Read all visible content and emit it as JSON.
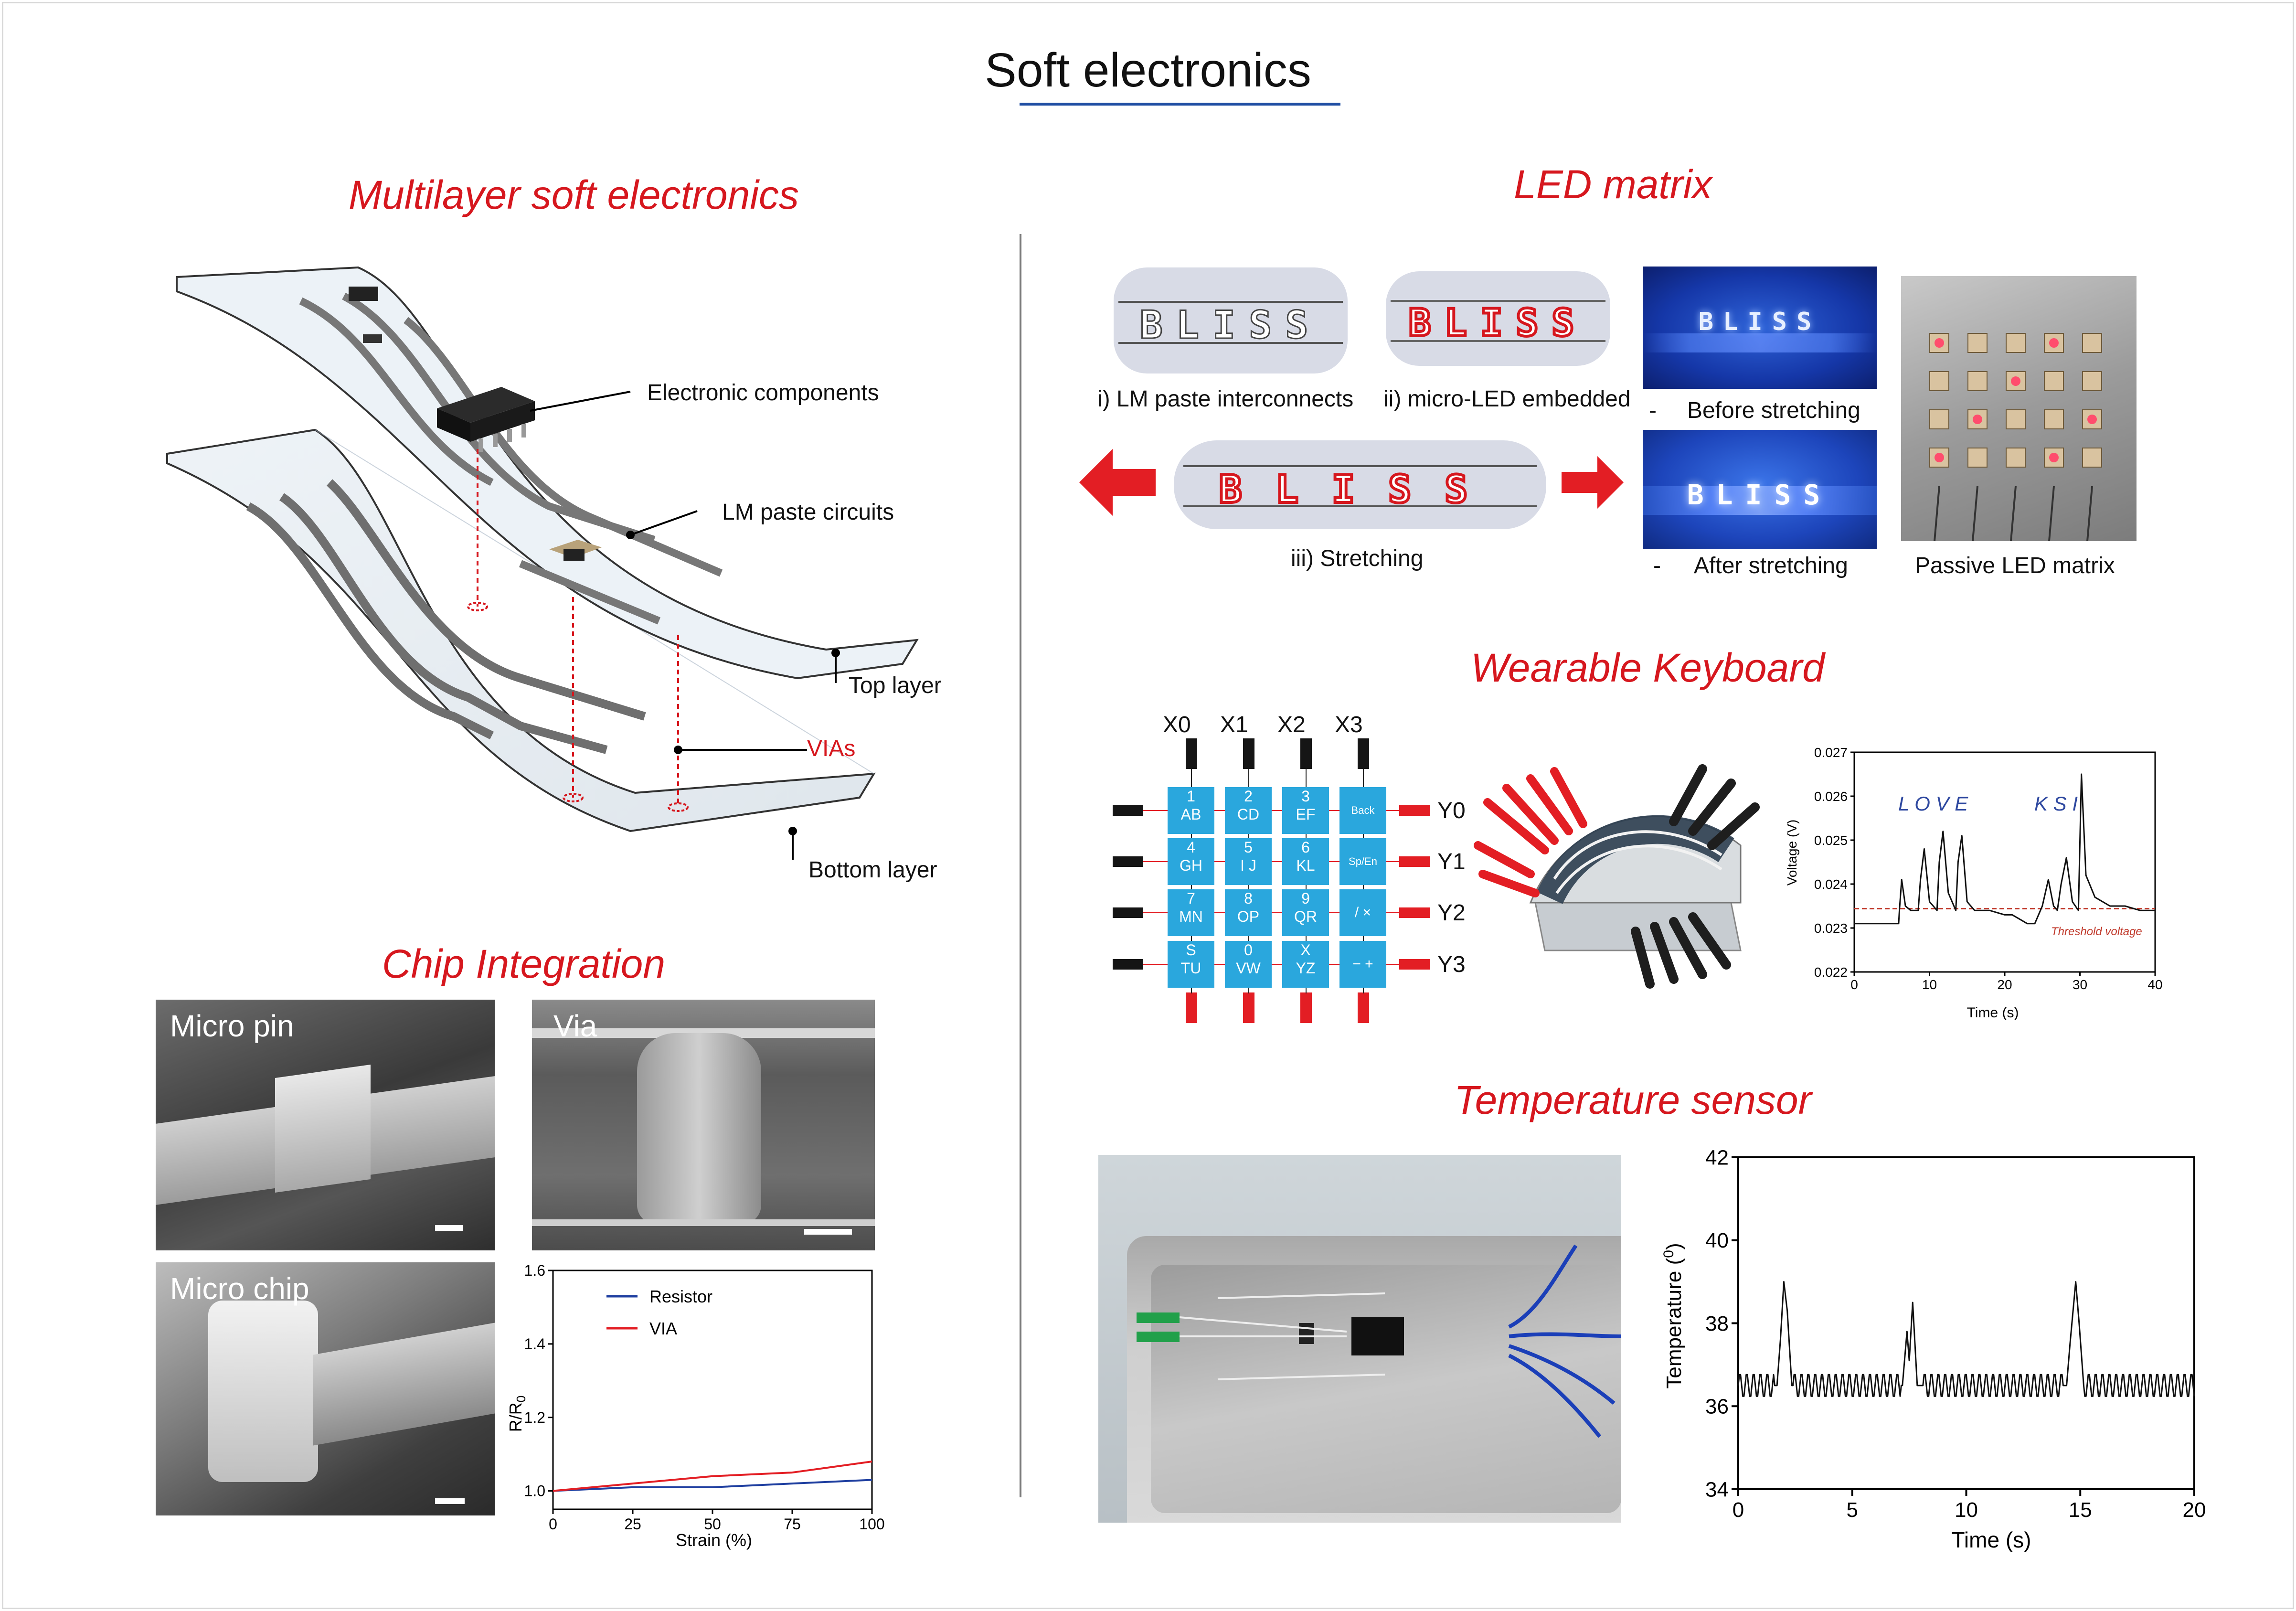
{
  "title": "Soft electronics",
  "multilayer": {
    "title": "Multilayer soft electronics",
    "labels": {
      "components": "Electronic components",
      "circuits": "LM paste circuits",
      "top": "Top layer",
      "vias": "VIAs",
      "bottom": "Bottom layer"
    }
  },
  "chip": {
    "title": "Chip Integration",
    "micro_pin": "Micro pin",
    "via": "Via",
    "micro_chip": "Micro chip",
    "chart": {
      "xlabel": "Strain (%)",
      "ylabel_main": "R/R",
      "ylabel_sub": "0",
      "xticks": [
        "0",
        "25",
        "50",
        "75",
        "100"
      ],
      "yticks": [
        "1.0",
        "1.2",
        "1.4",
        "1.6"
      ],
      "legend_resistor": "Resistor",
      "legend_via": "VIA"
    }
  },
  "led": {
    "title": "LED matrix",
    "bliss": "BLISS",
    "cap_i": "i) LM paste interconnects",
    "cap_ii": "ii) micro-LED embedded",
    "cap_iii": "iii) Stretching",
    "dash": "-",
    "before": "Before stretching",
    "after": "After stretching",
    "passive": "Passive LED matrix"
  },
  "keyboard": {
    "title": "Wearable Keyboard",
    "cols": [
      "X0",
      "X1",
      "X2",
      "X3"
    ],
    "rows": [
      "Y0",
      "Y1",
      "Y2",
      "Y3"
    ],
    "keys": [
      [
        "1",
        "AB"
      ],
      [
        "2",
        "CD"
      ],
      [
        "3",
        "EF"
      ],
      [
        "Back",
        ""
      ],
      [
        "4",
        "GH"
      ],
      [
        "5",
        "I J"
      ],
      [
        "6",
        "KL"
      ],
      [
        "Sp/En",
        ""
      ],
      [
        "7",
        "MN"
      ],
      [
        "8",
        "OP"
      ],
      [
        "9",
        "QR"
      ],
      [
        "/ ×",
        ""
      ],
      [
        "S",
        "TU"
      ],
      [
        "0",
        "VW"
      ],
      [
        "X",
        "YZ"
      ],
      [
        "− +",
        ""
      ]
    ],
    "chart": {
      "xlabel": "Time (s)",
      "ylabel": "Voltage (V)",
      "xticks": [
        "0",
        "10",
        "20",
        "30",
        "40"
      ],
      "yticks": [
        "0.022",
        "0.023",
        "0.024",
        "0.025",
        "0.026",
        "0.027"
      ],
      "ann1": "L O V E",
      "ann2": "K S I",
      "threshold_label": "Threshold voltage"
    }
  },
  "temp": {
    "title": "Temperature sensor",
    "chart": {
      "xlabel": "Time (s)",
      "ylabel_main": "Temperature (",
      "ylabel_sup": "0",
      "ylabel_end": ")",
      "xticks": [
        "0",
        "5",
        "10",
        "15",
        "20"
      ],
      "yticks": [
        "34",
        "36",
        "38",
        "40",
        "42"
      ]
    }
  },
  "chart_data": [
    {
      "type": "line",
      "xlabel": "Strain (%)",
      "ylabel": "R/R0",
      "xlim": [
        0,
        100
      ],
      "ylim": [
        0.95,
        1.6
      ],
      "x": [
        0,
        25,
        50,
        75,
        100
      ],
      "series": [
        {
          "name": "Resistor",
          "color": "#1f3fa0",
          "values": [
            1.0,
            1.01,
            1.01,
            1.02,
            1.03
          ]
        },
        {
          "name": "VIA",
          "color": "#e31e24",
          "values": [
            1.0,
            1.02,
            1.04,
            1.05,
            1.08
          ]
        }
      ]
    },
    {
      "type": "line",
      "xlabel": "Time (s)",
      "ylabel": "Voltage (V)",
      "xlim": [
        0,
        40
      ],
      "ylim": [
        0.022,
        0.027
      ],
      "threshold": 0.02344,
      "x": [
        0,
        2,
        4,
        5.9,
        6,
        6.3,
        6.8,
        7.5,
        8.5,
        8.8,
        9.3,
        10,
        11,
        11.3,
        11.8,
        12.5,
        13.5,
        13.8,
        14.3,
        15,
        16,
        18,
        20,
        21,
        22,
        23,
        24,
        24.5,
        25,
        25.8,
        26.5,
        27,
        27.5,
        28.2,
        29,
        29.8,
        30.2,
        30.8,
        32,
        34,
        36,
        38,
        40
      ],
      "series": [
        {
          "name": "",
          "color": "#111111",
          "values": [
            0.0231,
            0.0231,
            0.0231,
            0.0231,
            0.0234,
            0.0241,
            0.0235,
            0.0234,
            0.0234,
            0.0241,
            0.0248,
            0.0236,
            0.0234,
            0.0245,
            0.0252,
            0.0238,
            0.0234,
            0.0245,
            0.0251,
            0.0236,
            0.0234,
            0.0234,
            0.0233,
            0.0233,
            0.0232,
            0.0231,
            0.0231,
            0.0233,
            0.0235,
            0.0241,
            0.0235,
            0.0234,
            0.024,
            0.0246,
            0.0236,
            0.0234,
            0.0265,
            0.0242,
            0.0237,
            0.0235,
            0.0235,
            0.0234,
            0.0234
          ]
        }
      ]
    },
    {
      "type": "line",
      "xlabel": "Time (s)",
      "ylabel": "Temperature (0)",
      "xlim": [
        0,
        20
      ],
      "ylim": [
        34,
        42
      ],
      "x": [
        0,
        1.7,
        1.85,
        2.0,
        2.15,
        2.35,
        7.2,
        7.4,
        7.5,
        7.65,
        7.85,
        8.05,
        14.4,
        14.55,
        14.65,
        14.8,
        14.95,
        15.15,
        20
      ],
      "series": [
        {
          "name": "",
          "color": "#111111",
          "values": [
            36.5,
            36.5,
            37.6,
            39.0,
            38.3,
            36.5,
            36.5,
            37.8,
            37.1,
            38.5,
            36.5,
            36.5,
            36.5,
            37.5,
            38.1,
            39.0,
            38.0,
            36.5,
            36.5
          ]
        }
      ]
    }
  ]
}
